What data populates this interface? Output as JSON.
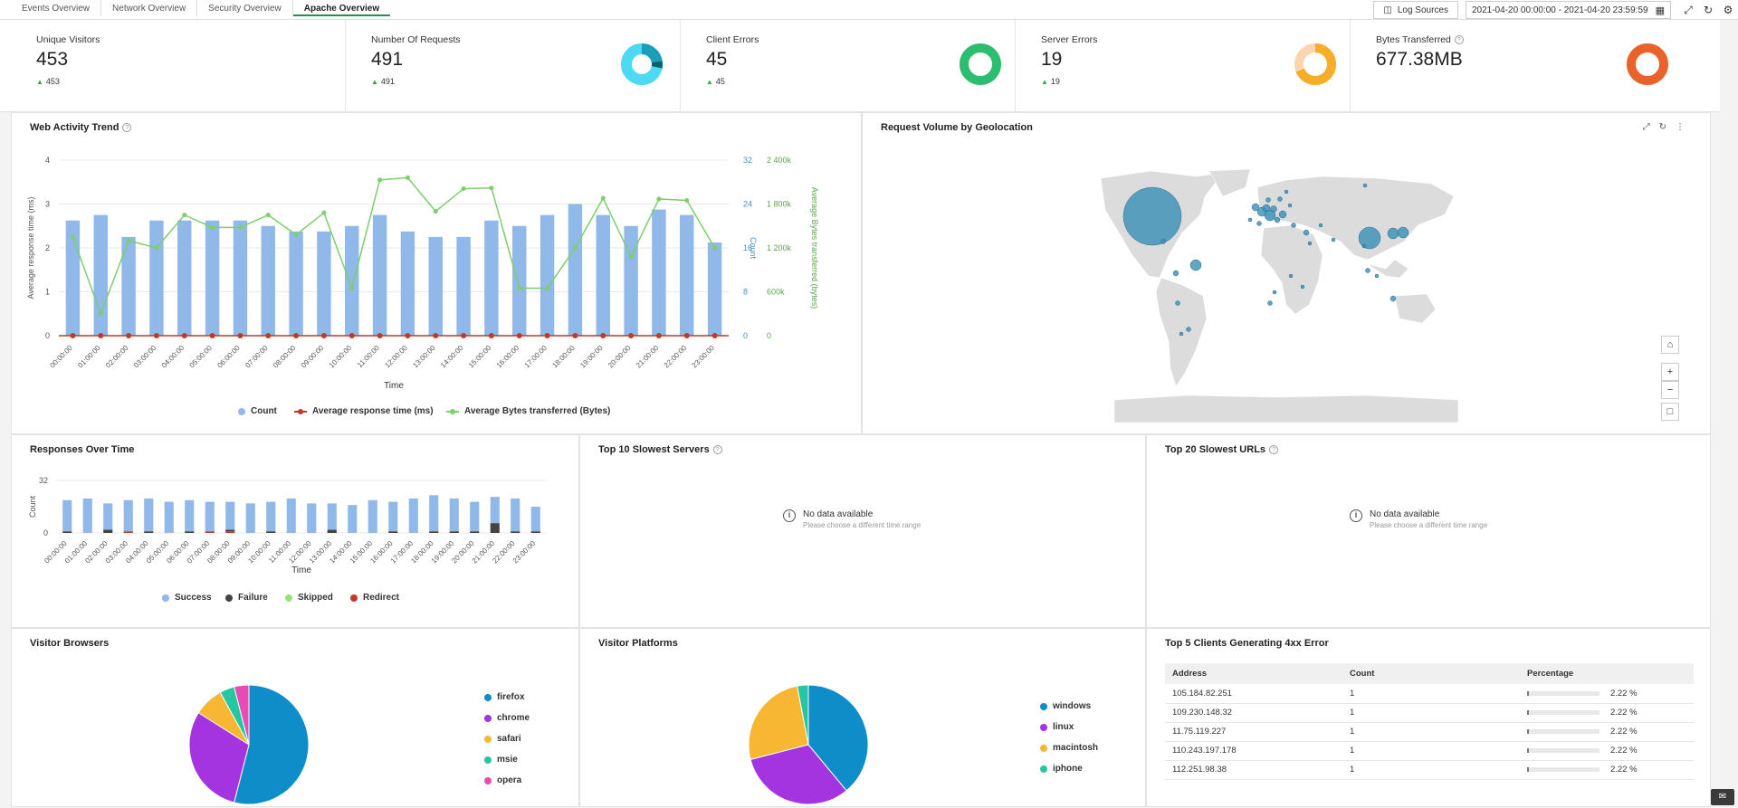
{
  "tabs": [
    {
      "label": "Events Overview",
      "active": false
    },
    {
      "label": "Network Overview",
      "active": false
    },
    {
      "label": "Security Overview",
      "active": false
    },
    {
      "label": "Apache Overview",
      "active": true
    }
  ],
  "toolbar": {
    "log_sources_label": "Log Sources",
    "date_range": "2021-04-20 00:00:00 - 2021-04-20 23:59:59",
    "icons": [
      "calendar-icon",
      "fullscreen-icon",
      "refresh-icon",
      "gear-icon"
    ]
  },
  "kpis": [
    {
      "label": "Unique Visitors",
      "value": "453",
      "delta": "453"
    },
    {
      "label": "Number Of Requests",
      "value": "491",
      "delta": "491",
      "donut_color": "#4dd9f2"
    },
    {
      "label": "Client Errors",
      "value": "45",
      "delta": "45",
      "donut_color": "#2dbd6e"
    },
    {
      "label": "Server Errors",
      "value": "19",
      "delta": "19",
      "donut_color": "#f5ae2a"
    },
    {
      "label": "Bytes Transferred",
      "value": "677.38MB",
      "delta": "",
      "donut_color": "#e8622c"
    }
  ],
  "panels": {
    "web_activity": {
      "title": "Web Activity Trend"
    },
    "geo": {
      "title": "Request Volume by Geolocation"
    },
    "responses": {
      "title": "Responses Over Time"
    },
    "slow_servers": {
      "title": "Top 10 Slowest Servers",
      "nodata": "No data available",
      "nodata_hint": "Please choose a different time range"
    },
    "slow_urls": {
      "title": "Top 20 Slowest URLs",
      "nodata": "No data available",
      "nodata_hint": "Please choose a different time range"
    },
    "browsers": {
      "title": "Visitor Browsers"
    },
    "platforms": {
      "title": "Visitor Platforms"
    },
    "clients": {
      "title": "Top 5 Clients Generating 4xx Error"
    }
  },
  "chart_data": [
    {
      "type": "bar",
      "title": "Web Activity Trend",
      "xlabel": "Time",
      "ylabel": "Average response time (ms)",
      "y2label": "Count",
      "y3label": "Average Bytes transferred (bytes)",
      "y_ticks": [
        "0",
        "1",
        "2",
        "3",
        "4"
      ],
      "y2_ticks": [
        "0",
        "8",
        "16",
        "24",
        "32"
      ],
      "y3_ticks": [
        "0",
        "600k",
        "1 200k",
        "1 800k",
        "2 400k"
      ],
      "ylim": [
        0,
        4
      ],
      "y2lim": [
        0,
        32
      ],
      "y3lim": [
        0,
        2400000
      ],
      "categories": [
        "00:00:00",
        "01:00:00",
        "02:00:00",
        "03:00:00",
        "04:00:00",
        "05:00:00",
        "06:00:00",
        "07:00:00",
        "08:00:00",
        "09:00:00",
        "10:00:00",
        "11:00:00",
        "12:00:00",
        "13:00:00",
        "14:00:00",
        "15:00:00",
        "16:00:00",
        "17:00:00",
        "18:00:00",
        "19:00:00",
        "20:00:00",
        "21:00:00",
        "22:00:00",
        "23:00:00"
      ],
      "series": [
        {
          "name": "Count",
          "axis": "y2",
          "values": [
            21,
            22,
            18,
            21,
            21,
            21,
            21,
            20,
            19,
            19,
            20,
            22,
            19,
            18,
            18,
            21,
            20,
            22,
            24,
            22,
            20,
            23,
            22,
            17
          ],
          "color": "#90b8e8"
        },
        {
          "name": "Average response time (ms)",
          "axis": "y",
          "values": [
            0,
            0,
            0,
            0,
            0,
            0,
            0,
            0,
            0,
            0,
            0,
            0,
            0,
            0,
            0,
            0,
            0,
            0,
            0,
            0,
            0,
            0,
            0,
            0
          ],
          "color": "#c0392b"
        },
        {
          "name": "Average Bytes transferred (Bytes)",
          "axis": "y3",
          "values": [
            1350000,
            300000,
            1300000,
            1200000,
            1650000,
            1480000,
            1480000,
            1650000,
            1380000,
            1680000,
            650000,
            2130000,
            2160000,
            1700000,
            2010000,
            2020000,
            650000,
            650000,
            1200000,
            1880000,
            1080000,
            1870000,
            1850000,
            1200000
          ],
          "color": "#7ccf6a"
        }
      ],
      "legend": "bottom"
    },
    {
      "type": "bar",
      "title": "Responses Over Time",
      "xlabel": "Time",
      "ylabel": "Count",
      "y_ticks": [
        "0",
        "32"
      ],
      "ylim": [
        0,
        32
      ],
      "categories": [
        "00:00:00",
        "01:00:00",
        "02:00:00",
        "03:00:00",
        "04:00:00",
        "05:00:00",
        "06:00:00",
        "07:00:00",
        "08:00:00",
        "09:00:00",
        "10:00:00",
        "11:00:00",
        "12:00:00",
        "13:00:00",
        "14:00:00",
        "15:00:00",
        "16:00:00",
        "17:00:00",
        "18:00:00",
        "19:00:00",
        "20:00:00",
        "21:00:00",
        "22:00:00",
        "23:00:00"
      ],
      "series": [
        {
          "name": "Success",
          "values": [
            19,
            21,
            16,
            19,
            20,
            19,
            19,
            18,
            17,
            18,
            18,
            21,
            18,
            16,
            17,
            20,
            18,
            21,
            22,
            20,
            18,
            16,
            20,
            15
          ],
          "color": "#90b8e8"
        },
        {
          "name": "Failure",
          "values": [
            1,
            0,
            2,
            0,
            1,
            0,
            1,
            0,
            1,
            0,
            1,
            0,
            0,
            2,
            0,
            0,
            1,
            0,
            1,
            1,
            1,
            6,
            1,
            1
          ],
          "color": "#444444"
        },
        {
          "name": "Skipped",
          "values": [
            0,
            0,
            0,
            0,
            0,
            0,
            0,
            0,
            0,
            0,
            0,
            0,
            0,
            0,
            0,
            0,
            0,
            0,
            0,
            0,
            0,
            0,
            0,
            0
          ],
          "color": "#9be07a"
        },
        {
          "name": "Redirect",
          "values": [
            0,
            0,
            0,
            1,
            0,
            0,
            0,
            1,
            1,
            0,
            0,
            0,
            0,
            0,
            0,
            0,
            0,
            0,
            0,
            0,
            0,
            0,
            0,
            0
          ],
          "color": "#c0392b"
        }
      ],
      "legend": "bottom"
    },
    {
      "type": "pie",
      "title": "Visitor Browsers",
      "categories": [
        "firefox",
        "chrome",
        "safari",
        "msie",
        "opera"
      ],
      "values": [
        54,
        30,
        8,
        4,
        4
      ],
      "colors": [
        "#0f8dc8",
        "#a334e0",
        "#f7b733",
        "#25c6a0",
        "#e94bb4"
      ],
      "legend": "right"
    },
    {
      "type": "pie",
      "title": "Visitor Platforms",
      "categories": [
        "windows",
        "linux",
        "macintosh",
        "iphone"
      ],
      "values": [
        39,
        32,
        26,
        3
      ],
      "colors": [
        "#0f8dc8",
        "#a334e0",
        "#f7b733",
        "#25c6a0"
      ],
      "legend": "right"
    },
    {
      "type": "table",
      "title": "Top 5 Clients Generating 4xx Error",
      "columns": [
        "Address",
        "Count",
        "Percentage"
      ],
      "rows": [
        {
          "address": "105.184.82.251",
          "count": "1",
          "percentage": "2.22 %",
          "fraction": 0.0222
        },
        {
          "address": "109.230.148.32",
          "count": "1",
          "percentage": "2.22 %",
          "fraction": 0.0222
        },
        {
          "address": "11.75.119.227",
          "count": "1",
          "percentage": "2.22 %",
          "fraction": 0.0222
        },
        {
          "address": "110.243.197.178",
          "count": "1",
          "percentage": "2.22 %",
          "fraction": 0.0222
        },
        {
          "address": "112.251.98.38",
          "count": "1",
          "percentage": "2.22 %",
          "fraction": 0.0222
        }
      ]
    }
  ]
}
